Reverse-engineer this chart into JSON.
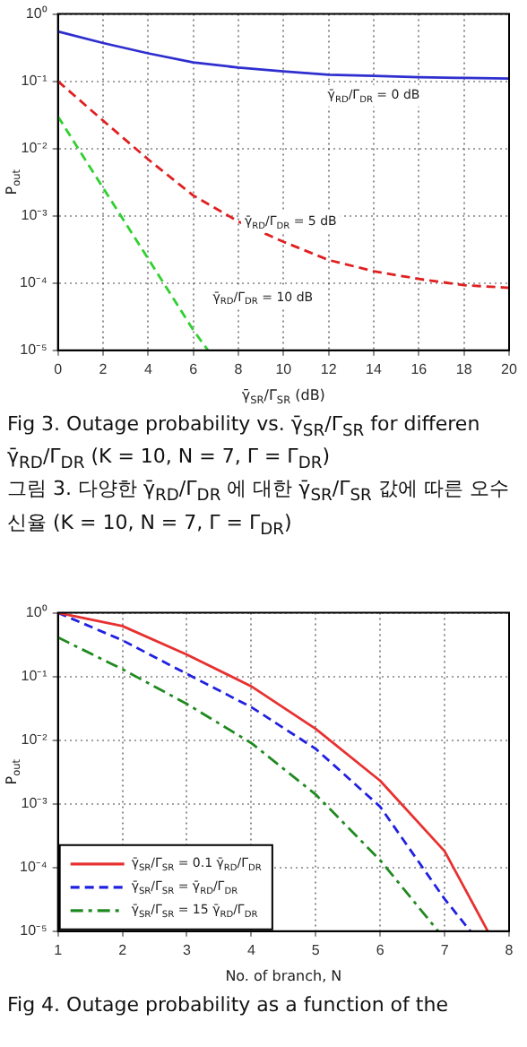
{
  "chart_data": [
    {
      "type": "line",
      "xlabel": "γ̄$_{SR}$/Γ$_{SR}$ (dB)",
      "ylabel": "P$_{out}$",
      "log": "y",
      "grid": true,
      "marker": "none",
      "legend": false,
      "xlim": [
        0,
        20
      ],
      "xticks": [
        0,
        2,
        4,
        6,
        8,
        10,
        12,
        14,
        16,
        18,
        20
      ],
      "ylim": [
        1e-05,
        1
      ],
      "yticks": [
        {
          "value": 1e-05,
          "label": "10⁻⁵"
        },
        {
          "value": 0.0001,
          "label": "10⁻⁴"
        },
        {
          "value": 0.001,
          "label": "10⁻³"
        },
        {
          "value": 0.01,
          "label": "10⁻²"
        },
        {
          "value": 0.1,
          "label": "10⁻¹"
        },
        {
          "value": 1,
          "label": "10⁰"
        }
      ],
      "series": [
        {
          "color": "#2f2fd0",
          "line_style": "solid",
          "x": [
            0,
            2,
            4,
            6,
            8,
            10,
            12,
            14,
            16,
            18,
            20
          ],
          "values": [
            0.55,
            0.37,
            0.26,
            0.19,
            0.16,
            0.14,
            0.125,
            0.12,
            0.115,
            0.112,
            0.11
          ]
        },
        {
          "color": "#e02020",
          "line_style": "dashed",
          "x": [
            0,
            2,
            4,
            6,
            8,
            10,
            12,
            14,
            16,
            18,
            20
          ],
          "values": [
            0.1,
            0.026,
            0.0069,
            0.002,
            0.00082,
            0.00041,
            0.00022,
            0.00015,
            0.000115,
            9.3e-05,
            8.5e-05
          ]
        },
        {
          "color": "#30d030",
          "line_style": "dashed",
          "x": [
            0,
            2,
            4,
            6,
            6.65
          ],
          "values": [
            0.03,
            0.0026,
            0.00023,
            2e-05,
            1e-05
          ]
        }
      ],
      "annotations": [
        "γ̄$_{RD}$/Γ$_{DR}$ = 0 dB",
        "γ̄$_{RD}$/Γ$_{DR}$ = 5 dB",
        "γ̄$_{RD}$/Γ$_{DR}$ = 10 dB",
        "Fig 3. Outage probability vs. γ̄$_{SR}$/Γ$_{SR}$ for differen γ̄$_{RD}$/Γ$_{DR}$ (K = 10, N = 7, Γ = Γ$_{DR}$)",
        "그림 3. 다양한 γ̄$_{RD}$/Γ$_{DR}$ 에 대한 γ̄$_{SR}$/Γ$_{SR}$ 값에 따른 오수신율 (K = 10, N = 7, Γ = Γ$_{DR}$)"
      ]
    },
    {
      "type": "line",
      "xlabel": "No. of branch, N",
      "ylabel": "P$_{out}$",
      "log": "y",
      "grid": true,
      "marker": "none",
      "legend": "bottom left",
      "xlim": [
        1,
        8
      ],
      "xticks": [
        1,
        2,
        3,
        4,
        5,
        6,
        7,
        8
      ],
      "ylim": [
        1e-05,
        1
      ],
      "yticks": [
        {
          "value": 1e-05,
          "label": "10⁻⁵"
        },
        {
          "value": 0.0001,
          "label": "10⁻⁴"
        },
        {
          "value": 0.001,
          "label": "10⁻³"
        },
        {
          "value": 0.01,
          "label": "10⁻²"
        },
        {
          "value": 0.1,
          "label": "10⁻¹"
        },
        {
          "value": 1,
          "label": "10⁰"
        }
      ],
      "series": [
        {
          "name": "γ̄$_{SR}$/Γ$_{SR}$ = 0.1 γ̄$_{RD}$/Γ$_{DR}$",
          "color": "#e83030",
          "line_style": "solid",
          "x": [
            1,
            2,
            3,
            4,
            5,
            6,
            7,
            7.67
          ],
          "values": [
            1,
            0.62,
            0.22,
            0.07,
            0.015,
            0.0023,
            0.00018,
            1e-05
          ]
        },
        {
          "name": "γ̄$_{SR}$/Γ$_{SR}$ = γ̄$_{RD}$/Γ$_{DR}$",
          "color": "#2020e0",
          "line_style": "dashed",
          "x": [
            1,
            2,
            3,
            4,
            5,
            6,
            7,
            7.4
          ],
          "values": [
            1,
            0.37,
            0.11,
            0.033,
            0.0073,
            0.0009,
            3.2e-05,
            1e-05
          ]
        },
        {
          "name": "γ̄$_{SR}$/Γ$_{SR}$ = 15 γ̄$_{RD}$/Γ$_{DR}$",
          "color": "#208a20",
          "line_style": "dashdot",
          "x": [
            1,
            2,
            3,
            4,
            5,
            6,
            6.9
          ],
          "values": [
            0.41,
            0.13,
            0.037,
            0.009,
            0.0014,
            0.00013,
            1e-05
          ]
        }
      ],
      "annotations": [
        "Fig 4. Outage probability as a function of the"
      ]
    }
  ]
}
